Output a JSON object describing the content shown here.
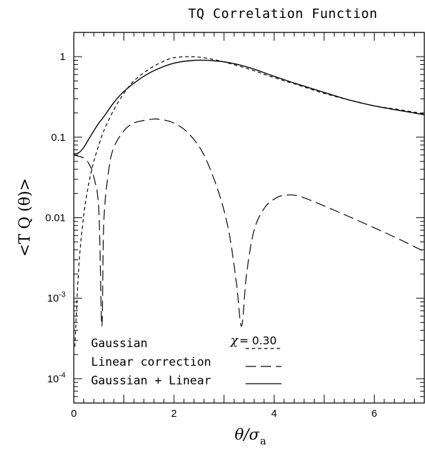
{
  "chart_data": {
    "type": "line",
    "title": "TQ Correlation Function",
    "xlabel": "θ/σa",
    "xlabel_main": "θ/σ",
    "xlabel_sub": "a",
    "ylabel": "<T Q (θ)>",
    "xlim": [
      0,
      7
    ],
    "ylim": [
      5e-05,
      2
    ],
    "yscale": "log",
    "grid": false,
    "legend_position": "bottom-left",
    "x_ticks": [
      {
        "value": 0,
        "label": "0"
      },
      {
        "value": 2,
        "label": "2"
      },
      {
        "value": 4,
        "label": "4"
      },
      {
        "value": 6,
        "label": "6"
      }
    ],
    "y_ticks": [
      {
        "value": 1,
        "label": "1"
      },
      {
        "value": 0.1,
        "label": "0.1"
      },
      {
        "value": 0.01,
        "label": "0.01"
      },
      {
        "value": 0.001,
        "base": "10",
        "exp": "-3"
      },
      {
        "value": 0.0001,
        "base": "10",
        "exp": "-4"
      }
    ],
    "annotation": {
      "symbol": "χ",
      "text": "= 0.30",
      "x": 3.6,
      "y": 0.00042
    },
    "series": [
      {
        "name": "Gaussian",
        "style": "dotted",
        "x": [
          0.02,
          0.1,
          0.2,
          0.3,
          0.4,
          0.5,
          0.6,
          0.8,
          1.0,
          1.2,
          1.5,
          1.8,
          2.0,
          2.3,
          2.6,
          3.0,
          3.5,
          4.0,
          4.5,
          5.0,
          5.5,
          6.0,
          6.5,
          7.0
        ],
        "values": [
          0.00025,
          0.0025,
          0.011,
          0.027,
          0.05,
          0.08,
          0.12,
          0.22,
          0.35,
          0.5,
          0.7,
          0.88,
          0.97,
          1.0,
          0.97,
          0.86,
          0.7,
          0.55,
          0.44,
          0.35,
          0.29,
          0.245,
          0.22,
          0.195
        ]
      },
      {
        "name": "Linear correction",
        "style": "long-dash",
        "x": [
          0.0,
          0.1,
          0.2,
          0.3,
          0.4,
          0.5,
          0.56,
          0.6,
          0.7,
          0.8,
          1.0,
          1.2,
          1.5,
          1.7,
          2.0,
          2.3,
          2.6,
          2.9,
          3.1,
          3.25,
          3.35,
          3.45,
          3.6,
          3.8,
          4.0,
          4.2,
          4.5,
          5.0,
          5.5,
          6.0,
          6.5,
          7.0
        ],
        "values": [
          0.06,
          0.058,
          0.055,
          0.047,
          0.032,
          0.012,
          0.00045,
          0.009,
          0.04,
          0.075,
          0.12,
          0.15,
          0.165,
          0.167,
          0.15,
          0.11,
          0.06,
          0.02,
          0.0065,
          0.0015,
          0.00045,
          0.002,
          0.007,
          0.013,
          0.017,
          0.019,
          0.0185,
          0.014,
          0.0103,
          0.0075,
          0.0054,
          0.0038
        ]
      },
      {
        "name": "Gaussian + Linear",
        "style": "solid",
        "x": [
          0.0,
          0.1,
          0.2,
          0.3,
          0.4,
          0.5,
          0.6,
          0.8,
          1.0,
          1.3,
          1.6,
          2.0,
          2.4,
          2.8,
          3.2,
          3.6,
          4.0,
          4.5,
          5.0,
          5.5,
          6.0,
          6.5,
          7.0
        ],
        "values": [
          0.062,
          0.064,
          0.075,
          0.095,
          0.12,
          0.15,
          0.18,
          0.27,
          0.37,
          0.52,
          0.67,
          0.83,
          0.9,
          0.89,
          0.82,
          0.7,
          0.57,
          0.45,
          0.36,
          0.29,
          0.245,
          0.215,
          0.19
        ]
      }
    ]
  }
}
